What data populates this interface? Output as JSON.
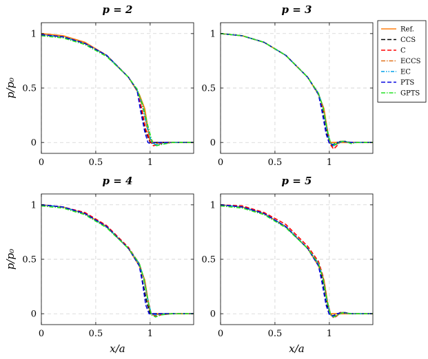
{
  "figure": {
    "xlabel": "x/a",
    "ylabel": "p/p₀"
  },
  "legend": {
    "placement": "right, outside top",
    "items": [
      {
        "name": "Ref.",
        "color": "#ff7f0e",
        "dash": "solid"
      },
      {
        "name": "CCS",
        "color": "#000000",
        "dash": "dashed"
      },
      {
        "name": "C",
        "color": "#ff0000",
        "dash": "dashed"
      },
      {
        "name": "ECCS",
        "color": "#e0701a",
        "dash": "dashdot"
      },
      {
        "name": "EC",
        "color": "#00a0e8",
        "dash": "dashdotdot"
      },
      {
        "name": "PTS",
        "color": "#0000e0",
        "dash": "dashed"
      },
      {
        "name": "GPTS",
        "color": "#22e022",
        "dash": "dashdot"
      }
    ]
  },
  "chart_data": [
    {
      "type": "line",
      "title": "p = 2",
      "xlim": [
        0,
        1.4
      ],
      "ylim": [
        -0.1,
        1.1
      ],
      "xticks": [
        0,
        0.5,
        1
      ],
      "yticks": [
        0,
        0.5,
        1
      ],
      "xticklabels": [
        "0",
        "0.5",
        "1"
      ],
      "yticklabels": [
        "0",
        "0.5",
        "1"
      ],
      "grid": true,
      "series": [
        {
          "name": "Ref.",
          "x": [
            0,
            0.2,
            0.4,
            0.6,
            0.8,
            0.9,
            0.95,
            1.0,
            1.05,
            1.1,
            1.2,
            1.3,
            1.4
          ],
          "y": [
            1,
            0.98,
            0.92,
            0.8,
            0.6,
            0.44,
            0.31,
            0,
            0,
            0,
            0,
            0,
            0
          ]
        },
        {
          "name": "CCS",
          "x": [
            0,
            0.2,
            0.4,
            0.6,
            0.8,
            0.88,
            0.92,
            0.96,
            1.0,
            1.05,
            1.1,
            1.2,
            1.4
          ],
          "y": [
            0.99,
            0.97,
            0.91,
            0.8,
            0.6,
            0.48,
            0.3,
            0.1,
            0,
            0,
            0,
            0,
            0
          ]
        },
        {
          "name": "C",
          "x": [
            0,
            0.2,
            0.4,
            0.6,
            0.8,
            0.88,
            0.92,
            0.96,
            1.0,
            1.03,
            1.07,
            1.1,
            1.2,
            1.4
          ],
          "y": [
            0.99,
            0.97,
            0.91,
            0.8,
            0.6,
            0.48,
            0.32,
            0.12,
            0.01,
            -0.03,
            -0.02,
            -0.01,
            0,
            0
          ]
        },
        {
          "name": "ECCS",
          "x": [
            0,
            0.2,
            0.4,
            0.6,
            0.8,
            0.88,
            0.93,
            0.97,
            1.0,
            1.05,
            1.1,
            1.2,
            1.4
          ],
          "y": [
            0.99,
            0.97,
            0.91,
            0.8,
            0.6,
            0.48,
            0.33,
            0.14,
            0.03,
            -0.01,
            0,
            0,
            0
          ]
        },
        {
          "name": "EC",
          "x": [
            0,
            0.2,
            0.4,
            0.6,
            0.8,
            0.88,
            0.93,
            0.97,
            1.01,
            1.05,
            1.1,
            1.2,
            1.4
          ],
          "y": [
            0.99,
            0.97,
            0.91,
            0.8,
            0.6,
            0.48,
            0.34,
            0.15,
            0.01,
            -0.02,
            -0.01,
            0,
            0
          ]
        },
        {
          "name": "PTS",
          "x": [
            0,
            0.2,
            0.4,
            0.6,
            0.8,
            0.88,
            0.91,
            0.95,
            0.98,
            1.0,
            1.05,
            1.2,
            1.4
          ],
          "y": [
            0.99,
            0.97,
            0.91,
            0.8,
            0.6,
            0.48,
            0.3,
            0.1,
            0,
            -0.01,
            0,
            0,
            0
          ]
        },
        {
          "name": "GPTS",
          "x": [
            0,
            0.2,
            0.4,
            0.6,
            0.8,
            0.88,
            0.93,
            0.98,
            1.02,
            1.06,
            1.1,
            1.2,
            1.4
          ],
          "y": [
            0.98,
            0.96,
            0.9,
            0.79,
            0.6,
            0.49,
            0.35,
            0.15,
            0.0,
            -0.03,
            -0.02,
            0,
            0
          ]
        }
      ]
    },
    {
      "type": "line",
      "title": "p = 3",
      "xlim": [
        0,
        1.4
      ],
      "ylim": [
        -0.1,
        1.1
      ],
      "xticks": [
        0,
        0.5,
        1
      ],
      "yticks": [
        0,
        0.5,
        1
      ],
      "xticklabels": [
        "0",
        "0.5",
        "1"
      ],
      "yticklabels": [
        "0",
        "0.5",
        "1"
      ],
      "grid": true,
      "series": [
        {
          "name": "Ref.",
          "x": [
            0,
            0.2,
            0.4,
            0.6,
            0.8,
            0.9,
            0.95,
            1.0,
            1.05,
            1.1,
            1.2,
            1.3,
            1.4
          ],
          "y": [
            1,
            0.98,
            0.92,
            0.8,
            0.6,
            0.44,
            0.31,
            0,
            0,
            0,
            0,
            0,
            0
          ]
        },
        {
          "name": "CCS",
          "x": [
            0,
            0.2,
            0.4,
            0.6,
            0.8,
            0.9,
            0.94,
            0.98,
            1.0,
            1.03,
            1.06,
            1.1,
            1.15,
            1.2,
            1.4
          ],
          "y": [
            1,
            0.98,
            0.92,
            0.8,
            0.6,
            0.45,
            0.3,
            0.08,
            0,
            -0.03,
            -0.02,
            0.01,
            0.01,
            0,
            0
          ]
        },
        {
          "name": "C",
          "x": [
            0,
            0.2,
            0.4,
            0.6,
            0.8,
            0.9,
            0.94,
            0.98,
            1.01,
            1.04,
            1.07,
            1.1,
            1.14,
            1.18,
            1.25,
            1.4
          ],
          "y": [
            1,
            0.98,
            0.92,
            0.8,
            0.6,
            0.45,
            0.32,
            0.12,
            -0.02,
            -0.06,
            -0.03,
            0.01,
            0.01,
            0,
            0,
            0
          ]
        },
        {
          "name": "ECCS",
          "x": [
            0,
            0.2,
            0.4,
            0.6,
            0.8,
            0.9,
            0.94,
            0.98,
            1.01,
            1.04,
            1.08,
            1.12,
            1.2,
            1.4
          ],
          "y": [
            1,
            0.98,
            0.92,
            0.8,
            0.6,
            0.45,
            0.33,
            0.1,
            -0.01,
            -0.03,
            -0.01,
            0.01,
            0,
            0
          ]
        },
        {
          "name": "EC",
          "x": [
            0,
            0.2,
            0.4,
            0.6,
            0.8,
            0.9,
            0.94,
            0.98,
            1.01,
            1.04,
            1.08,
            1.12,
            1.2,
            1.4
          ],
          "y": [
            1,
            0.98,
            0.92,
            0.8,
            0.6,
            0.45,
            0.33,
            0.1,
            -0.01,
            -0.03,
            -0.01,
            0.01,
            0,
            0
          ]
        },
        {
          "name": "PTS",
          "x": [
            0,
            0.2,
            0.4,
            0.6,
            0.8,
            0.9,
            0.93,
            0.97,
            1.0,
            1.03,
            1.07,
            1.12,
            1.2,
            1.4
          ],
          "y": [
            1,
            0.98,
            0.92,
            0.8,
            0.6,
            0.44,
            0.3,
            0.08,
            -0.01,
            -0.02,
            0,
            0.01,
            0,
            0
          ]
        },
        {
          "name": "GPTS",
          "x": [
            0,
            0.2,
            0.4,
            0.6,
            0.8,
            0.9,
            0.94,
            0.98,
            1.01,
            1.05,
            1.1,
            1.15,
            1.2,
            1.25,
            1.4
          ],
          "y": [
            1,
            0.98,
            0.92,
            0.8,
            0.6,
            0.45,
            0.33,
            0.12,
            0,
            -0.02,
            0.01,
            0.01,
            -0.01,
            0,
            0
          ]
        }
      ]
    },
    {
      "type": "line",
      "title": "p = 4",
      "xlim": [
        0,
        1.4
      ],
      "ylim": [
        -0.1,
        1.1
      ],
      "xticks": [
        0,
        0.5,
        1
      ],
      "yticks": [
        0,
        0.5,
        1
      ],
      "xticklabels": [
        "0",
        "0.5",
        "1"
      ],
      "yticklabels": [
        "0",
        "0.5",
        "1"
      ],
      "grid": true,
      "series": [
        {
          "name": "Ref.",
          "x": [
            0,
            0.2,
            0.4,
            0.6,
            0.8,
            0.9,
            0.95,
            1.0,
            1.05,
            1.1,
            1.2,
            1.3,
            1.4
          ],
          "y": [
            1,
            0.98,
            0.92,
            0.8,
            0.6,
            0.44,
            0.31,
            0,
            0,
            0,
            0,
            0,
            0
          ]
        },
        {
          "name": "CCS",
          "x": [
            0,
            0.2,
            0.4,
            0.6,
            0.8,
            0.9,
            0.93,
            0.97,
            1.0,
            1.05,
            1.1,
            1.2,
            1.4
          ],
          "y": [
            1,
            0.98,
            0.92,
            0.8,
            0.6,
            0.46,
            0.3,
            0.1,
            0,
            0,
            0,
            0,
            0
          ]
        },
        {
          "name": "C",
          "x": [
            0,
            0.2,
            0.4,
            0.6,
            0.8,
            0.9,
            0.94,
            0.98,
            1.01,
            1.05,
            1.1,
            1.2,
            1.4
          ],
          "y": [
            1,
            0.98,
            0.93,
            0.81,
            0.61,
            0.46,
            0.33,
            0.12,
            0,
            -0.02,
            -0.01,
            0,
            0
          ]
        },
        {
          "name": "ECCS",
          "x": [
            0,
            0.2,
            0.4,
            0.6,
            0.8,
            0.9,
            0.94,
            0.98,
            1.01,
            1.05,
            1.1,
            1.2,
            1.4
          ],
          "y": [
            1,
            0.98,
            0.92,
            0.8,
            0.6,
            0.46,
            0.33,
            0.12,
            0,
            -0.01,
            0,
            0,
            0
          ]
        },
        {
          "name": "EC",
          "x": [
            0,
            0.2,
            0.4,
            0.6,
            0.8,
            0.9,
            0.94,
            0.98,
            1.01,
            1.05,
            1.1,
            1.2,
            1.4
          ],
          "y": [
            1,
            0.98,
            0.92,
            0.8,
            0.6,
            0.46,
            0.33,
            0.12,
            0,
            -0.01,
            0,
            0,
            0
          ]
        },
        {
          "name": "PTS",
          "x": [
            0,
            0.2,
            0.4,
            0.6,
            0.8,
            0.9,
            0.93,
            0.96,
            0.99,
            1.02,
            1.1,
            1.2,
            1.4
          ],
          "y": [
            1,
            0.98,
            0.92,
            0.8,
            0.6,
            0.44,
            0.28,
            0.08,
            0,
            0,
            0,
            0,
            0
          ]
        },
        {
          "name": "GPTS",
          "x": [
            0,
            0.2,
            0.4,
            0.6,
            0.8,
            0.9,
            0.94,
            0.98,
            1.01,
            1.05,
            1.1,
            1.2,
            1.4
          ],
          "y": [
            0.99,
            0.97,
            0.91,
            0.79,
            0.6,
            0.46,
            0.33,
            0.12,
            -0.01,
            -0.03,
            -0.01,
            0,
            0
          ]
        }
      ]
    },
    {
      "type": "line",
      "title": "p = 5",
      "xlim": [
        0,
        1.4
      ],
      "ylim": [
        -0.1,
        1.1
      ],
      "xticks": [
        0,
        0.5,
        1
      ],
      "yticks": [
        0,
        0.5,
        1
      ],
      "xticklabels": [
        "0",
        "0.5",
        "1"
      ],
      "yticklabels": [
        "0",
        "0.5",
        "1"
      ],
      "grid": true,
      "series": [
        {
          "name": "Ref.",
          "x": [
            0,
            0.2,
            0.4,
            0.6,
            0.8,
            0.9,
            0.95,
            1.0,
            1.05,
            1.1,
            1.2,
            1.3,
            1.4
          ],
          "y": [
            1,
            0.98,
            0.92,
            0.8,
            0.6,
            0.44,
            0.31,
            0,
            0,
            0,
            0,
            0,
            0
          ]
        },
        {
          "name": "CCS",
          "x": [
            0,
            0.2,
            0.4,
            0.6,
            0.8,
            0.9,
            0.94,
            0.98,
            1.0,
            1.03,
            1.06,
            1.1,
            1.15,
            1.2,
            1.4
          ],
          "y": [
            1,
            0.98,
            0.92,
            0.8,
            0.6,
            0.46,
            0.3,
            0.08,
            0,
            -0.02,
            -0.01,
            0.01,
            0.01,
            0,
            0
          ]
        },
        {
          "name": "C",
          "x": [
            0,
            0.2,
            0.4,
            0.6,
            0.8,
            0.9,
            0.94,
            0.98,
            1.01,
            1.04,
            1.07,
            1.1,
            1.14,
            1.2,
            1.4
          ],
          "y": [
            1,
            0.99,
            0.93,
            0.82,
            0.62,
            0.48,
            0.35,
            0.12,
            0,
            -0.04,
            -0.02,
            0.01,
            0.01,
            0,
            0
          ]
        },
        {
          "name": "ECCS",
          "x": [
            0,
            0.2,
            0.4,
            0.6,
            0.8,
            0.9,
            0.94,
            0.98,
            1.01,
            1.04,
            1.08,
            1.12,
            1.2,
            1.4
          ],
          "y": [
            1,
            0.98,
            0.92,
            0.8,
            0.6,
            0.46,
            0.33,
            0.1,
            -0.01,
            -0.03,
            -0.01,
            0.01,
            0,
            0
          ]
        },
        {
          "name": "EC",
          "x": [
            0,
            0.2,
            0.4,
            0.6,
            0.8,
            0.9,
            0.94,
            0.98,
            1.01,
            1.04,
            1.08,
            1.12,
            1.2,
            1.4
          ],
          "y": [
            1,
            0.98,
            0.92,
            0.8,
            0.6,
            0.46,
            0.33,
            0.1,
            -0.01,
            -0.03,
            -0.01,
            0.01,
            0,
            0
          ]
        },
        {
          "name": "PTS",
          "x": [
            0,
            0.2,
            0.4,
            0.6,
            0.8,
            0.9,
            0.93,
            0.97,
            1.0,
            1.03,
            1.07,
            1.12,
            1.2,
            1.4
          ],
          "y": [
            1,
            0.98,
            0.92,
            0.8,
            0.6,
            0.44,
            0.3,
            0.08,
            -0.01,
            -0.02,
            0,
            0.01,
            0,
            0
          ]
        },
        {
          "name": "GPTS",
          "x": [
            0,
            0.2,
            0.4,
            0.6,
            0.8,
            0.9,
            0.94,
            0.98,
            1.01,
            1.04,
            1.08,
            1.12,
            1.2,
            1.4
          ],
          "y": [
            0.99,
            0.97,
            0.91,
            0.79,
            0.6,
            0.46,
            0.33,
            0.12,
            0,
            -0.03,
            -0.01,
            0.01,
            0,
            0
          ]
        }
      ]
    }
  ]
}
